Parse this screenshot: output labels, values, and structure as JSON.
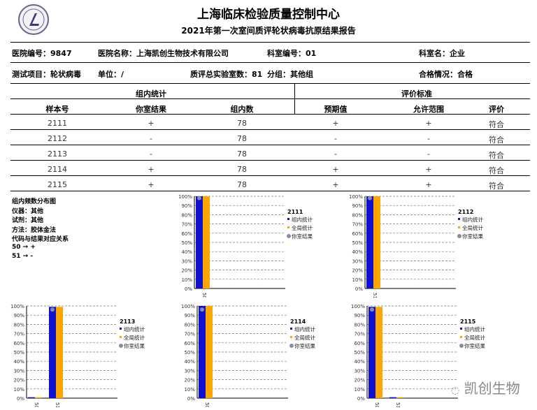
{
  "header": {
    "title": "上海临床检验质量控制中心",
    "subtitle": "2021年第一次室间质评轮状病毒抗原结果报告",
    "logo_text": "SCCL"
  },
  "info": {
    "hospital_id": "医院编号：9847",
    "hospital_name": "医院名称：上海凯创生物技术有限公司",
    "dept_id": "科室编号：01",
    "dept_name": "科室名：企业",
    "test_item": "测试项目：轮状病毒",
    "unit": "单位：/",
    "lab_count": "质评总实验室数：81",
    "group": "分组：其他组",
    "pass_status": "合格情况：合格"
  },
  "table": {
    "group_headers": [
      "组内统计",
      "评价标准"
    ],
    "columns": [
      "样本号",
      "你室结果",
      "组内数",
      "预期值",
      "允许范围",
      "评价"
    ],
    "rows": [
      [
        "2111",
        "+",
        "78",
        "+",
        "+",
        "符合"
      ],
      [
        "2112",
        "-",
        "78",
        "-",
        "-",
        "符合"
      ],
      [
        "2113",
        "-",
        "78",
        "-",
        "-",
        "符合"
      ],
      [
        "2114",
        "+",
        "78",
        "+",
        "+",
        "符合"
      ],
      [
        "2115",
        "+",
        "78",
        "+",
        "+",
        "符合"
      ]
    ]
  },
  "notes": [
    "组内频数分布图",
    "仪器：其他",
    "试剂：其他",
    "方法：胶体金法",
    "代码与结果对应关系",
    "50 → +",
    "51 → -"
  ],
  "watermark": "凯创生物",
  "colors": {
    "group": "#1010d0",
    "all": "#ffa500",
    "yours": "#8a8aa0"
  },
  "chart_data": [
    {
      "type": "bar",
      "title": "2111",
      "categories": [
        "50"
      ],
      "series": [
        {
          "name": "组内统计",
          "values": [
            100
          ]
        },
        {
          "name": "全局统计",
          "values": [
            100
          ]
        }
      ],
      "your_result": {
        "name": "你室结果",
        "category": "50",
        "value": 98
      },
      "ylim": [
        0,
        100
      ],
      "yticks": [
        "0%",
        "10%",
        "20%",
        "30%",
        "40%",
        "50%",
        "60%",
        "70%",
        "80%",
        "90%",
        "100%"
      ],
      "grid": true,
      "legend": "right"
    },
    {
      "type": "bar",
      "title": "2112",
      "categories": [
        "51"
      ],
      "series": [
        {
          "name": "组内统计",
          "values": [
            100
          ]
        },
        {
          "name": "全局统计",
          "values": [
            100
          ]
        }
      ],
      "your_result": {
        "name": "你室结果",
        "category": "51",
        "value": 98
      },
      "ylim": [
        0,
        100
      ],
      "yticks": [
        "0%",
        "10%",
        "20%",
        "30%",
        "40%",
        "50%",
        "60%",
        "70%",
        "80%",
        "90%",
        "100%"
      ],
      "grid": true,
      "legend": "right"
    },
    {
      "type": "bar",
      "title": "2113",
      "categories": [
        "50",
        "51"
      ],
      "series": [
        {
          "name": "组内统计",
          "values": [
            1,
            99
          ]
        },
        {
          "name": "全局统计",
          "values": [
            1,
            99
          ]
        }
      ],
      "your_result": {
        "name": "你室结果",
        "category": "51",
        "value": 96
      },
      "ylim": [
        0,
        100
      ],
      "yticks": [
        "0%",
        "10%",
        "20%",
        "30%",
        "40%",
        "50%",
        "60%",
        "70%",
        "80%",
        "90%",
        "100%"
      ],
      "grid": true,
      "legend": "right"
    },
    {
      "type": "bar",
      "title": "2114",
      "categories": [
        "50"
      ],
      "series": [
        {
          "name": "组内统计",
          "values": [
            100
          ]
        },
        {
          "name": "全局统计",
          "values": [
            100
          ]
        }
      ],
      "your_result": {
        "name": "你室结果",
        "category": "50",
        "value": 96
      },
      "ylim": [
        0,
        100
      ],
      "yticks": [
        "0%",
        "10%",
        "20%",
        "30%",
        "40%",
        "50%",
        "60%",
        "70%",
        "80%",
        "90%",
        "100%"
      ],
      "grid": true,
      "legend": "right"
    },
    {
      "type": "bar",
      "title": "2115",
      "categories": [
        "50",
        "51"
      ],
      "series": [
        {
          "name": "组内统计",
          "values": [
            99,
            1
          ]
        },
        {
          "name": "全局统计",
          "values": [
            99,
            1
          ]
        }
      ],
      "your_result": {
        "name": "你室结果",
        "category": "50",
        "value": 96
      },
      "ylim": [
        0,
        100
      ],
      "yticks": [
        "0%",
        "10%",
        "20%",
        "30%",
        "40%",
        "50%",
        "60%",
        "70%",
        "80%",
        "90%",
        "100%"
      ],
      "grid": true,
      "legend": "right"
    }
  ]
}
